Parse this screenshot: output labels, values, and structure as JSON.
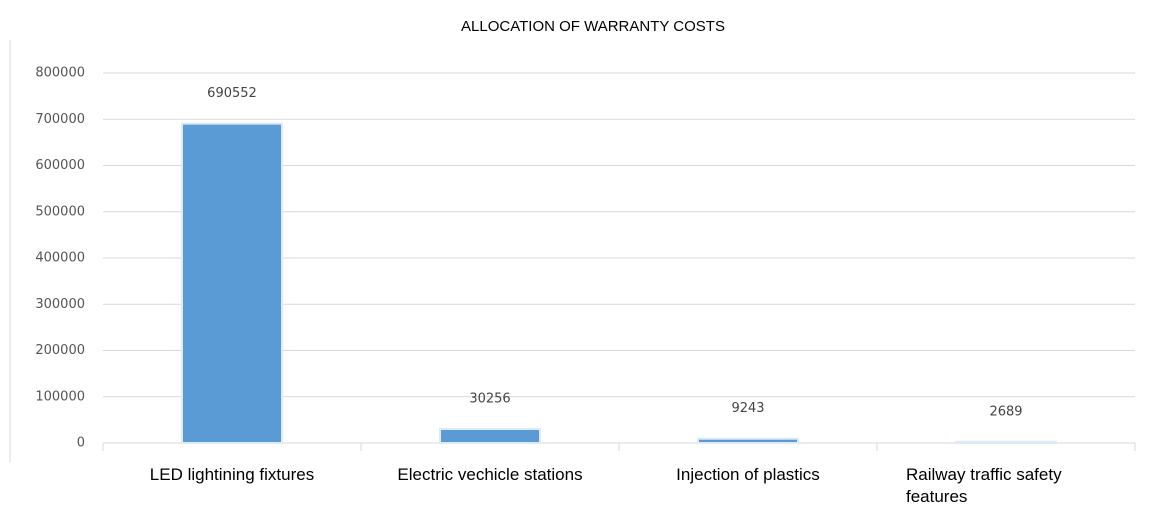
{
  "chart_data": {
    "type": "bar",
    "title": "ALLOCATION OF WARRANTY COSTS",
    "categories": [
      "LED lightining fixtures",
      "Electric vechicle stations",
      "Injection of plastics",
      "Railway traffic safety features"
    ],
    "values": [
      690552,
      30256,
      9243,
      2689
    ],
    "color": "#5b9bd5",
    "ylim": [
      0,
      800000
    ],
    "yticks": [
      0,
      100000,
      200000,
      300000,
      400000,
      500000,
      600000,
      700000,
      800000
    ],
    "grid": true
  }
}
